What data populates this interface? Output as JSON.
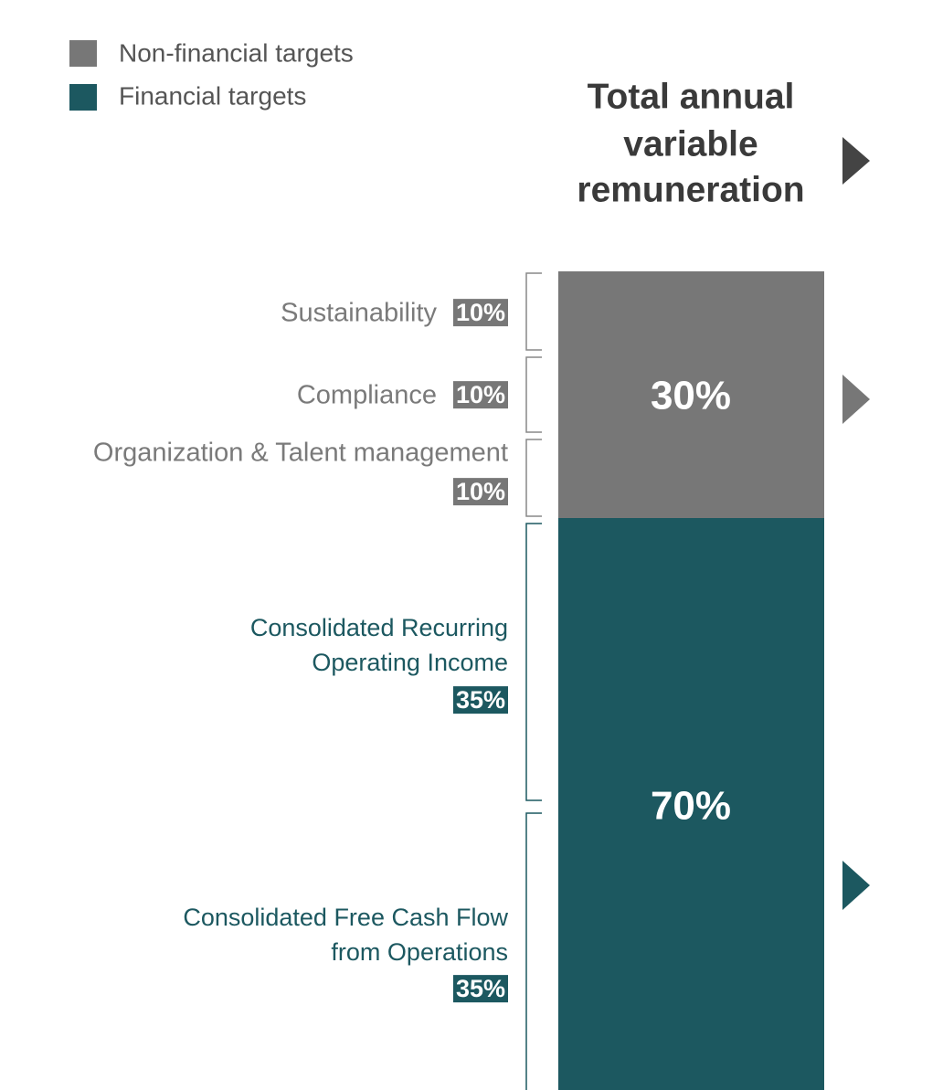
{
  "legend": [
    {
      "label": "Non-financial targets"
    },
    {
      "label": "Financial targets"
    }
  ],
  "title": [
    "Total annual",
    "variable",
    "remuneration"
  ],
  "bar": {
    "segments": [
      {
        "label": "30%"
      },
      {
        "label": "70%"
      }
    ]
  },
  "items": [
    {
      "lines": [
        "Sustainability"
      ],
      "share": "10%"
    },
    {
      "lines": [
        "Compliance"
      ],
      "share": "10%"
    },
    {
      "lines": [
        "Organization & Talent management"
      ],
      "share": "10%"
    },
    {
      "lines": [
        "Consolidated Recurring",
        "Operating Income"
      ],
      "share": "35%"
    },
    {
      "lines": [
        "Consolidated Free Cash Flow",
        "from Operations"
      ],
      "share": "35%"
    }
  ]
}
